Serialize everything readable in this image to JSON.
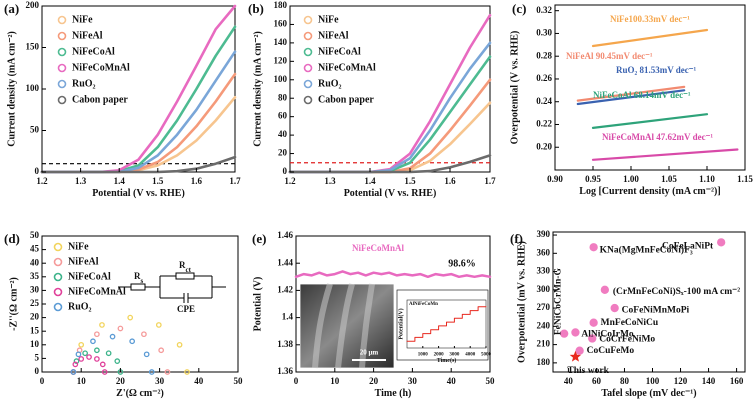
{
  "chart_data": [
    {
      "type": "line",
      "panel_label": "(a)",
      "xlabel": "Potential (V vs. RHE)",
      "ylabel": "Current density (mA cm⁻²)",
      "x": [
        1.2,
        1.25,
        1.3,
        1.35,
        1.4,
        1.45,
        1.5,
        1.55,
        1.6,
        1.65,
        1.7
      ],
      "xlim": [
        1.2,
        1.7
      ],
      "xticks": [
        1.2,
        1.3,
        1.4,
        1.5,
        1.6,
        1.7
      ],
      "ylim": [
        0,
        200
      ],
      "yticks": [
        0,
        50,
        100,
        150,
        200
      ],
      "legend": true,
      "hline": {
        "value": 10,
        "color": "#000000"
      },
      "series": [
        {
          "name": "NiFe",
          "color": "#f7c58f",
          "values": [
            0,
            0,
            0,
            0,
            0,
            2,
            8,
            20,
            38,
            62,
            90
          ]
        },
        {
          "name": "NiFeAl",
          "color": "#f59a7a",
          "values": [
            0,
            0,
            0,
            0,
            0,
            3,
            12,
            30,
            55,
            85,
            118
          ]
        },
        {
          "name": "NiFeCoAl",
          "color": "#4dbb91",
          "values": [
            0,
            0,
            0,
            0,
            1,
            8,
            30,
            62,
            100,
            140,
            175
          ]
        },
        {
          "name": "NiFeCoMnAl",
          "color": "#e86ac0",
          "values": [
            0,
            0,
            0,
            0,
            2,
            15,
            45,
            85,
            128,
            172,
            200
          ]
        },
        {
          "name": "RuO₂",
          "color": "#7aa6d8",
          "values": [
            0,
            0,
            0,
            0,
            0,
            5,
            20,
            45,
            75,
            110,
            145
          ]
        },
        {
          "name": "Cabon paper",
          "color": "#6b6b6b",
          "values": [
            0,
            0,
            0,
            0,
            0,
            0,
            0,
            1,
            4,
            10,
            18
          ]
        }
      ]
    },
    {
      "type": "line",
      "panel_label": "(b)",
      "xlabel": "Potential (V vs. RHE)",
      "ylabel": "Current density (mA cm⁻²)",
      "x": [
        1.2,
        1.25,
        1.3,
        1.35,
        1.4,
        1.45,
        1.5,
        1.55,
        1.6,
        1.65,
        1.7
      ],
      "xlim": [
        1.2,
        1.7
      ],
      "xticks": [
        1.2,
        1.3,
        1.4,
        1.5,
        1.6,
        1.7
      ],
      "ylim": [
        0,
        180
      ],
      "yticks": [
        0,
        20,
        40,
        60,
        80,
        100,
        120,
        140,
        160,
        180
      ],
      "legend": true,
      "hline": {
        "value": 10,
        "color": "#e02020"
      },
      "series": [
        {
          "name": "NiFe",
          "color": "#f7c58f",
          "values": [
            0,
            0,
            0,
            0,
            0,
            0,
            2,
            12,
            30,
            52,
            75
          ]
        },
        {
          "name": "NiFeAl",
          "color": "#f59a7a",
          "values": [
            0,
            0,
            0,
            0,
            0,
            0,
            4,
            20,
            45,
            72,
            100
          ]
        },
        {
          "name": "NiFeCoAl",
          "color": "#4dbb91",
          "values": [
            0,
            0,
            0,
            0,
            0,
            1,
            10,
            35,
            65,
            95,
            125
          ]
        },
        {
          "name": "NiFeCoMnAl",
          "color": "#e86ac0",
          "values": [
            0,
            0,
            0,
            0,
            0,
            3,
            20,
            55,
            95,
            135,
            170
          ]
        },
        {
          "name": "RuO₂",
          "color": "#7aa6d8",
          "values": [
            0,
            0,
            0,
            0,
            0,
            2,
            15,
            45,
            80,
            112,
            140
          ]
        },
        {
          "name": "Cabon paper",
          "color": "#6b6b6b",
          "values": [
            0,
            0,
            0,
            0,
            0,
            0,
            0,
            1,
            5,
            11,
            18
          ]
        }
      ]
    },
    {
      "type": "line",
      "panel_label": "(c)",
      "xlabel": "Log [Current density (mA cm⁻²)]",
      "ylabel": "Overpotential (V vs. RHE)",
      "xlim": [
        0.9,
        1.15
      ],
      "xticks": [
        {
          "value": 0.9,
          "label": "0.90"
        },
        0.95,
        {
          "value": 1.0,
          "label": "1.00"
        },
        1.05,
        {
          "value": 1.1,
          "label": "1.10"
        },
        1.15
      ],
      "ylim": [
        0.18,
        0.325
      ],
      "yticks": [
        {
          "value": 0.2,
          "label": "0.20"
        },
        0.22,
        0.24,
        0.26,
        0.28,
        {
          "value": 0.3,
          "label": "0.30"
        },
        0.32
      ],
      "series_labels": true,
      "series": [
        {
          "name": "NiFe100.33mV dec⁻¹",
          "color": "#f5a64c",
          "x": [
            0.95,
            1.1
          ],
          "values": [
            0.289,
            0.303
          ]
        },
        {
          "name": "NiFeAl 90.45mV dec⁻¹",
          "color": "#f28a70",
          "x": [
            0.93,
            1.07
          ],
          "values": [
            0.241,
            0.253
          ]
        },
        {
          "name": "RuO₂ 81.53mV dec⁻¹",
          "color": "#3a62b0",
          "x": [
            0.93,
            1.07
          ],
          "values": [
            0.238,
            0.25
          ]
        },
        {
          "name": "NiFeCoAl 68.14mV dec⁻¹",
          "color": "#2ea37a",
          "x": [
            0.95,
            1.1
          ],
          "values": [
            0.217,
            0.229
          ]
        },
        {
          "name": "NiFeCoMnAl 47.62mV dec⁻¹",
          "color": "#d84aa8",
          "x": [
            0.95,
            1.14
          ],
          "values": [
            0.189,
            0.198
          ]
        }
      ]
    },
    {
      "type": "scatter",
      "panel_label": "(d)",
      "xlabel": "Z'(Ω cm⁻²)",
      "ylabel": "-Z''(Ω cm⁻²)",
      "xlim": [
        0,
        50
      ],
      "xticks": [
        0,
        10,
        20,
        30,
        40,
        50
      ],
      "ylim": [
        0,
        50
      ],
      "yticks": [
        0,
        5,
        10,
        15,
        20,
        25,
        30,
        35,
        40,
        45,
        50
      ],
      "legend": true,
      "circuit": [
        {
          "main": "R",
          "sub": "s"
        },
        {
          "main": "R",
          "sub": "ct"
        },
        {
          "main": "CPE"
        }
      ],
      "series": [
        {
          "name": "NiFe",
          "color": "#f2d45c",
          "x": [
            8,
            10,
            15.3,
            22.5,
            29.8,
            35.1,
            37
          ],
          "values": [
            0,
            10,
            17.3,
            20,
            17.3,
            10,
            0
          ]
        },
        {
          "name": "NiFeAl",
          "color": "#f59a9a",
          "x": [
            8,
            9.6,
            14,
            20,
            26,
            30.4,
            32
          ],
          "values": [
            0,
            8,
            13.9,
            16,
            13.9,
            8,
            0
          ]
        },
        {
          "name": "NiFeCoAl",
          "color": "#3cb38a",
          "x": [
            8,
            8.8,
            11,
            14,
            17,
            19.2,
            20
          ],
          "values": [
            0,
            4,
            6.9,
            8,
            6.9,
            4,
            0
          ]
        },
        {
          "name": "NiFeCoMnAl",
          "color": "#e0409a",
          "x": [
            8,
            8.5,
            10,
            12,
            14,
            15.5,
            16
          ],
          "values": [
            0,
            2.8,
            4.8,
            5.5,
            4.8,
            2.8,
            0
          ]
        },
        {
          "name": "RuO₂",
          "color": "#5b9bd5",
          "x": [
            8,
            9.3,
            13,
            18,
            23,
            26.7,
            28
          ],
          "values": [
            0,
            6.5,
            11.3,
            13,
            11.3,
            6.5,
            0
          ]
        }
      ]
    },
    {
      "type": "line",
      "panel_label": "(e)",
      "xlabel": "Time (h)",
      "ylabel": "Potential (V)",
      "x": [
        0,
        2,
        4,
        6,
        8,
        10,
        12,
        14,
        16,
        18,
        20,
        22,
        24,
        26,
        28,
        30,
        32,
        34,
        36,
        38,
        40,
        42,
        44,
        46,
        48,
        50
      ],
      "xlim": [
        0,
        50
      ],
      "xticks": [
        0,
        10,
        20,
        30,
        40,
        50
      ],
      "ylim": [
        1.36,
        1.46
      ],
      "yticks": [
        1.36,
        1.38,
        1.4,
        1.42,
        1.44,
        1.46
      ],
      "series_labels": true,
      "annotations": [
        "98.6%"
      ],
      "series": [
        {
          "name": "NiFeCoMnAl",
          "color": "#e86ac0",
          "values": [
            1.43,
            1.432,
            1.431,
            1.433,
            1.431,
            1.432,
            1.434,
            1.432,
            1.433,
            1.431,
            1.433,
            1.432,
            1.433,
            1.431,
            1.432,
            1.431,
            1.432,
            1.43,
            1.432,
            1.431,
            1.432,
            1.43,
            1.431,
            1.43,
            1.431,
            1.43
          ]
        }
      ]
    },
    {
      "type": "scatter",
      "panel_label": "(f)",
      "xlabel": "Tafel slope (mV dec⁻¹)",
      "ylabel": "Overpotential (mV vs. RHE)",
      "xlim": [
        29,
        166
      ],
      "xticks": [
        40,
        60,
        80,
        100,
        120,
        140,
        160
      ],
      "ylim": [
        165,
        395
      ],
      "yticks": [
        180,
        210,
        240,
        270,
        300,
        330,
        360,
        390
      ],
      "point_labels": true,
      "filled": true,
      "series": [
        {
          "name": "KNa(MgMnFeCoNi)F₃",
          "color": "#f07cc0",
          "x": [
            58
          ],
          "values": [
            370
          ]
        },
        {
          "name": "CoFeLaNiPt",
          "color": "#f07cc0",
          "x": [
            149
          ],
          "values": [
            378
          ]
        },
        {
          "name": "FeNiCoCrMn-G",
          "color": "#f07cc0",
          "x": [
            37
          ],
          "values": [
            228
          ]
        },
        {
          "name": "(CrMnFeCoNi)Sₓ-100 mA cm⁻²",
          "color": "#f07cc0",
          "x": [
            66
          ],
          "values": [
            300
          ]
        },
        {
          "name": "CoFeNiMnMoPi",
          "color": "#f07cc0",
          "x": [
            73
          ],
          "values": [
            270
          ]
        },
        {
          "name": "MnFeCoNiCu",
          "color": "#f07cc0",
          "x": [
            58
          ],
          "values": [
            246
          ]
        },
        {
          "name": "AlNiCoIrMo",
          "color": "#f07cc0",
          "x": [
            45
          ],
          "values": [
            230
          ]
        },
        {
          "name": "CoCrFeNiMo",
          "color": "#f07cc0",
          "x": [
            57
          ],
          "values": [
            220
          ]
        },
        {
          "name": "CoCuFeMo",
          "color": "#f07cc0",
          "x": [
            48
          ],
          "values": [
            200
          ]
        },
        {
          "name": "This work",
          "color": "#e8281e",
          "marker": "star",
          "x": [
            45
          ],
          "values": [
            190
          ]
        }
      ]
    },
    {
      "type": "step",
      "title": "AlNiFeCoMn",
      "xlabel": "Time(s)",
      "ylabel": "Potential(V)",
      "xlim": [
        0,
        5000
      ],
      "xticks": [
        1000,
        2000,
        3000,
        4000,
        5000
      ],
      "ylim": [
        1.2,
        1.7
      ],
      "series": [
        {
          "name": "AlNiFeCoMn",
          "color": "#e8281e",
          "x": [
            0,
            500,
            1000,
            1500,
            2000,
            2500,
            3000,
            3500,
            4000,
            4500
          ],
          "values": [
            1.27,
            1.31,
            1.35,
            1.39,
            1.43,
            1.47,
            1.51,
            1.55,
            1.59,
            1.63
          ]
        }
      ]
    }
  ],
  "sem_image": {
    "scale_bar": "20 μm"
  }
}
